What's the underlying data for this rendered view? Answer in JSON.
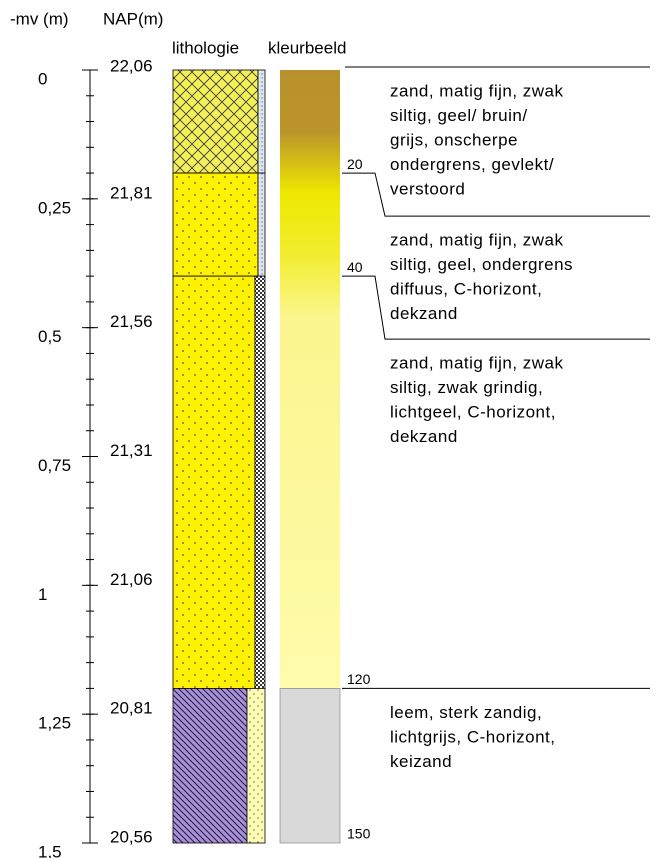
{
  "header": {
    "mv": "-mv (m)",
    "nap": "NAP(m)",
    "lithology": "lithologie",
    "color": "kleurbeeld"
  },
  "depth_ticks": [
    0,
    {
      "value": 0.25,
      "label": "0,25"
    },
    {
      "value": 0.5,
      "label": "0,5"
    },
    {
      "value": 0.75,
      "label": "0,75"
    },
    1,
    {
      "value": 1.25,
      "label": "1,25"
    },
    {
      "value": 1.5,
      "label": "1,5"
    }
  ],
  "nap_ticks": [
    "22,06",
    "21,81",
    "21,56",
    "21,31",
    "21,06",
    "20,81",
    "20,56"
  ],
  "boundaries": [
    20,
    40,
    120,
    150
  ],
  "descriptions": [
    [
      "zand, matig fijn, zwak",
      "siltig, geel/ bruin/",
      "grijs, onscherpe",
      "ondergrens, gevlekt/",
      "verstoord"
    ],
    [
      "zand, matig fijn, zwak",
      "siltig, geel, ondergrens",
      "diffuus, C-horizont,",
      "dekzand"
    ],
    [
      "zand, matig fijn, zwak",
      "siltig, zwak grindig,",
      "lichtgeel, C-horizont,",
      "dekzand"
    ],
    [
      "leem, sterk zandig,",
      "lichtgrijs, C-horizont,",
      "keizand"
    ]
  ]
}
